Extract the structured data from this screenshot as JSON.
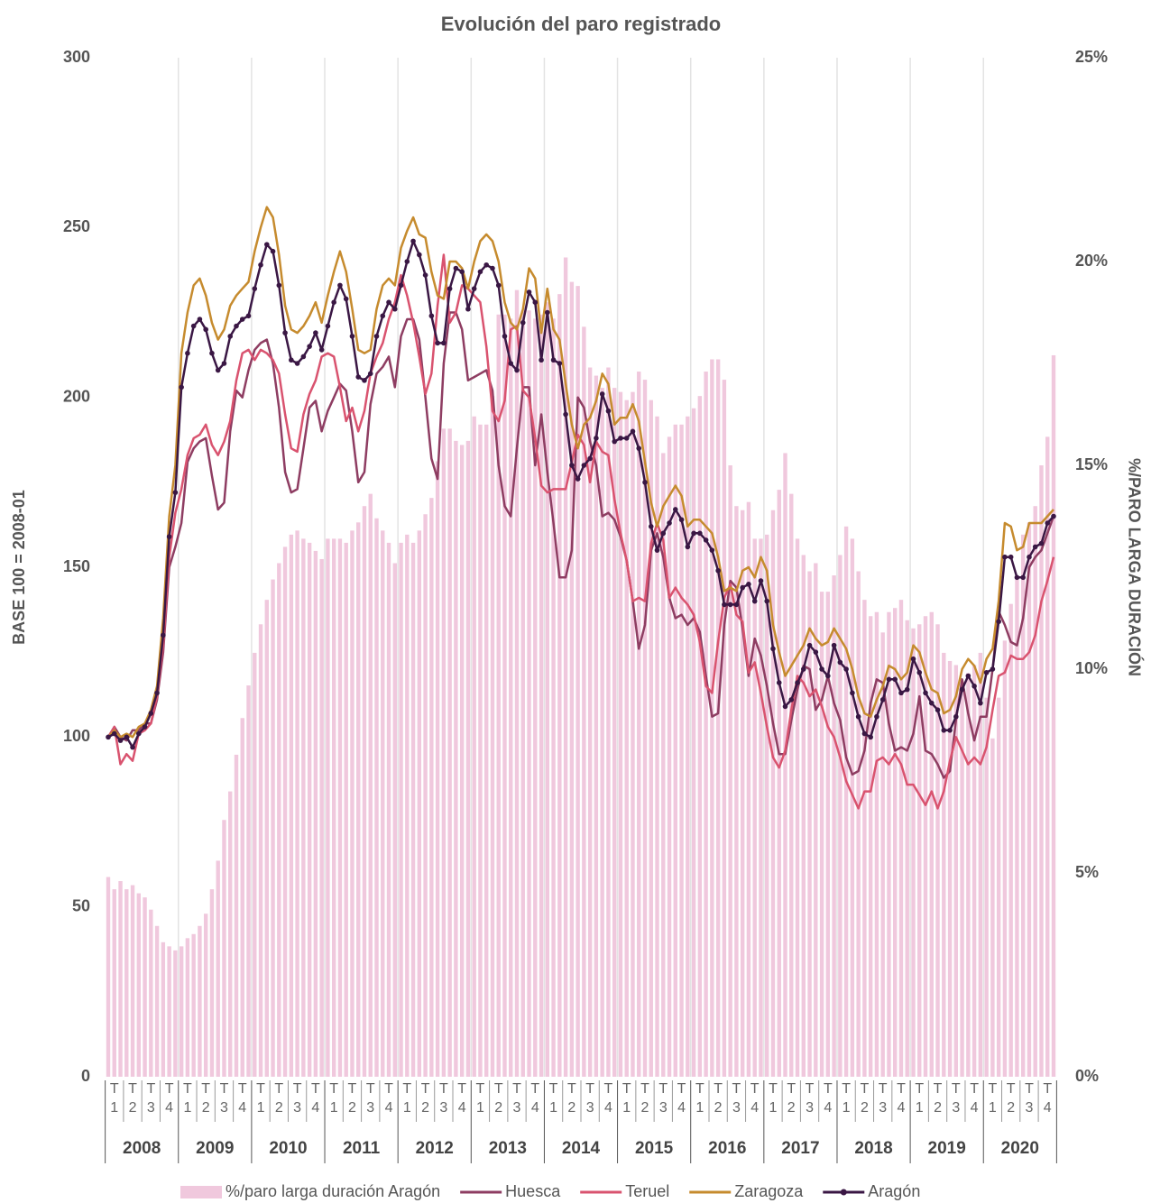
{
  "chart_data": {
    "type": "line",
    "title": "Evolución del paro registrado",
    "ylabel": "BASE 100 = 2008-01",
    "y2label": "%/PARO LARGA DURACIÓN",
    "ylim": [
      0,
      300
    ],
    "yticks": [
      0,
      50,
      100,
      150,
      200,
      250,
      300
    ],
    "y2lim": [
      0,
      25
    ],
    "y2ticks": [
      {
        "value": 0,
        "label": "0%"
      },
      {
        "value": 5,
        "label": "5%"
      },
      {
        "value": 10,
        "label": "10%"
      },
      {
        "value": 15,
        "label": "15%"
      },
      {
        "value": 20,
        "label": "20%"
      },
      {
        "value": 25,
        "label": "25%"
      }
    ],
    "quarters": [
      "T1",
      "T2",
      "T3",
      "T4",
      "T1",
      "T2",
      "T3",
      "T4",
      "T1",
      "T2",
      "T3",
      "T4",
      "T1",
      "T2",
      "T3",
      "T4",
      "T1",
      "T2",
      "T3",
      "T4",
      "T1",
      "T2",
      "T3",
      "T4",
      "T1",
      "T2",
      "T3",
      "T4",
      "T1",
      "T2",
      "T3",
      "T4",
      "T1",
      "T2",
      "T3",
      "T4",
      "T1",
      "T2",
      "T3",
      "T4",
      "T1",
      "T2",
      "T3",
      "T4",
      "T1",
      "T2",
      "T3",
      "T4",
      "T1",
      "T2",
      "T3",
      "T4"
    ],
    "years": [
      "2008",
      "2009",
      "2010",
      "2011",
      "2012",
      "2013",
      "2014",
      "2015",
      "2016",
      "2017",
      "2018",
      "2019",
      "2020"
    ],
    "grid": true,
    "legend": "bottom",
    "series": [
      {
        "name": "%/paro larga duración Aragón",
        "type": "bar",
        "axis": "y2",
        "color": "#f0c8dd",
        "values": [
          4.9,
          4.6,
          4.8,
          4.6,
          4.7,
          4.5,
          4.4,
          4.1,
          3.7,
          3.3,
          3.2,
          3.1,
          3.2,
          3.4,
          3.5,
          3.7,
          4.0,
          4.6,
          5.3,
          6.3,
          7.0,
          7.9,
          8.8,
          9.6,
          10.4,
          11.1,
          11.7,
          12.2,
          12.6,
          13.0,
          13.3,
          13.4,
          13.2,
          13.1,
          12.9,
          12.7,
          13.2,
          13.2,
          13.2,
          13.1,
          13.4,
          13.6,
          14.0,
          14.3,
          13.7,
          13.4,
          13.1,
          12.6,
          13.1,
          13.3,
          13.1,
          13.4,
          13.8,
          14.2,
          15.1,
          15.9,
          15.9,
          15.6,
          15.5,
          15.6,
          16.2,
          16.0,
          16.0,
          16.7,
          18.7,
          18.7,
          18.6,
          19.3,
          18.8,
          18.8,
          18.6,
          18.7,
          19.0,
          18.6,
          19.2,
          20.1,
          19.5,
          19.4,
          18.4,
          17.4,
          17.2,
          16.9,
          17.4,
          16.9,
          16.8,
          16.6,
          16.8,
          17.3,
          17.1,
          16.6,
          16.2,
          15.3,
          15.7,
          16.0,
          16.0,
          16.2,
          16.4,
          16.7,
          17.3,
          17.6,
          17.6,
          17.1,
          15.0,
          14.0,
          13.9,
          14.1,
          13.2,
          13.2,
          13.3,
          13.9,
          14.4,
          15.3,
          14.3,
          13.2,
          12.8,
          12.4,
          12.6,
          11.9,
          11.9,
          12.3,
          12.8,
          13.5,
          13.2,
          12.4,
          11.7,
          11.3,
          11.4,
          10.9,
          11.4,
          11.5,
          11.7,
          11.2,
          11.0,
          11.1,
          11.3,
          11.4,
          11.1,
          10.4,
          10.2,
          10.1,
          9.6,
          9.9,
          10.1,
          10.4,
          9.3,
          8.3,
          9.3,
          10.7,
          11.6,
          12.2,
          13.3,
          13.6,
          14.0,
          15.0,
          15.7,
          17.7
        ]
      },
      {
        "name": "Huesca",
        "color": "#8e3d62",
        "values": [
          100,
          103,
          100,
          99,
          102,
          102,
          104,
          104,
          111,
          125,
          150,
          156,
          163,
          181,
          185,
          187,
          188,
          177,
          167,
          169,
          190,
          202,
          200,
          208,
          214,
          216,
          217,
          210,
          197,
          178,
          172,
          173,
          185,
          197,
          199,
          190,
          196,
          200,
          204,
          202,
          190,
          175,
          178,
          198,
          207,
          209,
          212,
          203,
          218,
          223,
          223,
          217,
          200,
          182,
          176,
          210,
          225,
          225,
          220,
          205,
          206,
          207,
          208,
          202,
          180,
          168,
          165,
          185,
          203,
          203,
          180,
          195,
          178,
          163,
          147,
          147,
          155,
          200,
          197,
          187,
          180,
          165,
          166,
          164,
          159,
          152,
          140,
          126,
          133,
          155,
          160,
          153,
          141,
          135,
          136,
          133,
          135,
          131,
          118,
          106,
          107,
          133,
          146,
          144,
          132,
          118,
          129,
          124,
          115,
          104,
          95,
          95,
          105,
          114,
          121,
          120,
          108,
          111,
          118,
          110,
          105,
          94,
          89,
          90,
          96,
          110,
          117,
          116,
          104,
          96,
          97,
          96,
          101,
          112,
          96,
          95,
          92,
          88,
          90,
          105,
          117,
          107,
          99,
          106,
          106,
          120,
          137,
          133,
          128,
          127,
          135,
          150,
          153,
          155,
          160,
          165
        ]
      },
      {
        "name": "Teruel",
        "color": "#d9536f",
        "values": [
          100,
          103,
          92,
          95,
          93,
          101,
          102,
          104,
          112,
          127,
          153,
          166,
          173,
          183,
          188,
          189,
          192,
          186,
          183,
          187,
          193,
          205,
          213,
          214,
          211,
          214,
          213,
          211,
          207,
          195,
          185,
          184,
          195,
          201,
          205,
          212,
          213,
          212,
          203,
          193,
          197,
          190,
          196,
          207,
          212,
          216,
          223,
          228,
          236,
          230,
          222,
          212,
          201,
          207,
          227,
          242,
          222,
          225,
          233,
          232,
          230,
          228,
          215,
          196,
          193,
          199,
          220,
          221,
          202,
          200,
          188,
          174,
          172,
          173,
          173,
          173,
          181,
          189,
          186,
          175,
          187,
          184,
          183,
          170,
          160,
          152,
          140,
          141,
          140,
          157,
          163,
          158,
          141,
          144,
          141,
          139,
          136,
          128,
          115,
          113,
          128,
          141,
          145,
          136,
          134,
          119,
          122,
          113,
          103,
          94,
          91,
          96,
          108,
          118,
          116,
          112,
          114,
          109,
          103,
          100,
          94,
          87,
          83,
          79,
          84,
          84,
          93,
          94,
          92,
          95,
          92,
          86,
          86,
          83,
          80,
          84,
          79,
          84,
          93,
          100,
          96,
          92,
          94,
          92,
          97,
          108,
          118,
          119,
          124,
          123,
          123,
          125,
          130,
          140,
          146,
          153
        ]
      },
      {
        "name": "Zaragoza",
        "color": "#c68b2e",
        "values": [
          100,
          102,
          100,
          101,
          100,
          103,
          104,
          108,
          115,
          135,
          165,
          180,
          213,
          225,
          233,
          235,
          230,
          222,
          217,
          220,
          227,
          230,
          232,
          234,
          243,
          250,
          256,
          253,
          242,
          227,
          220,
          219,
          221,
          224,
          228,
          222,
          230,
          237,
          243,
          237,
          226,
          214,
          213,
          214,
          226,
          233,
          235,
          233,
          244,
          249,
          253,
          248,
          247,
          237,
          230,
          229,
          240,
          240,
          238,
          232,
          240,
          246,
          248,
          246,
          240,
          228,
          222,
          220,
          226,
          238,
          235,
          219,
          232,
          220,
          217,
          204,
          192,
          185,
          192,
          194,
          199,
          207,
          204,
          192,
          194,
          194,
          198,
          193,
          181,
          169,
          162,
          168,
          171,
          174,
          171,
          162,
          164,
          164,
          162,
          160,
          153,
          143,
          144,
          143,
          149,
          150,
          147,
          153,
          149,
          133,
          125,
          118,
          121,
          124,
          127,
          132,
          129,
          127,
          128,
          132,
          129,
          126,
          120,
          112,
          107,
          106,
          111,
          115,
          121,
          120,
          117,
          119,
          127,
          125,
          119,
          114,
          113,
          107,
          108,
          112,
          120,
          123,
          121,
          116,
          123,
          126,
          140,
          163,
          162,
          155,
          156,
          163,
          163,
          163,
          165,
          167
        ]
      },
      {
        "name": "Aragón",
        "color": "#3a1744",
        "markers": true,
        "values": [
          100,
          101,
          99,
          100,
          97,
          101,
          103,
          107,
          113,
          130,
          159,
          172,
          203,
          213,
          221,
          223,
          220,
          213,
          208,
          210,
          218,
          221,
          223,
          224,
          232,
          239,
          245,
          243,
          233,
          219,
          211,
          210,
          212,
          215,
          219,
          214,
          221,
          228,
          233,
          229,
          218,
          206,
          205,
          207,
          218,
          224,
          228,
          226,
          233,
          240,
          246,
          242,
          236,
          224,
          216,
          216,
          232,
          238,
          237,
          226,
          232,
          237,
          239,
          238,
          233,
          218,
          210,
          208,
          222,
          231,
          228,
          211,
          225,
          211,
          210,
          195,
          180,
          176,
          180,
          182,
          188,
          201,
          196,
          187,
          188,
          188,
          190,
          185,
          175,
          162,
          155,
          160,
          163,
          167,
          164,
          156,
          160,
          160,
          158,
          155,
          149,
          139,
          139,
          139,
          144,
          145,
          140,
          146,
          140,
          126,
          116,
          109,
          111,
          116,
          120,
          127,
          125,
          120,
          118,
          127,
          122,
          120,
          113,
          106,
          101,
          100,
          106,
          111,
          117,
          117,
          113,
          114,
          123,
          119,
          113,
          110,
          108,
          102,
          102,
          106,
          114,
          118,
          115,
          110,
          119,
          120,
          134,
          153,
          153,
          147,
          147,
          153,
          156,
          157,
          163,
          165
        ]
      }
    ]
  }
}
